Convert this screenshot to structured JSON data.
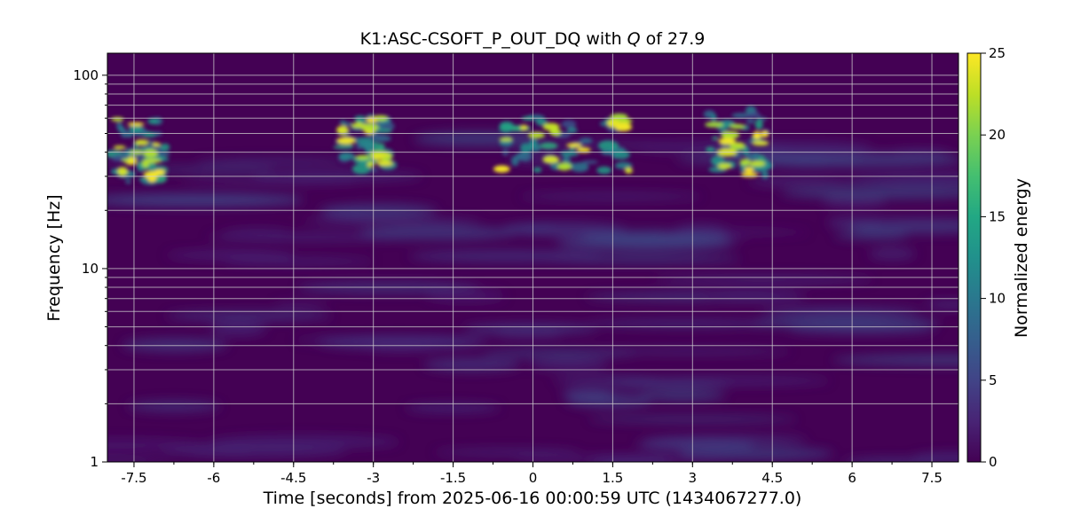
{
  "chart_data": {
    "type": "heatmap",
    "title_prefix": "K1:ASC-CSOFT_P_OUT_DQ with ",
    "title_q_symbol": "Q",
    "title_suffix": " of 27.9",
    "xlabel": "Time [seconds] from 2025-06-16 00:00:59 UTC (1434067277.0)",
    "ylabel": "Frequency [Hz]",
    "colorbar_label": "Normalized energy",
    "x_range": [
      -8,
      8
    ],
    "y_range": [
      1,
      130
    ],
    "y_scale": "log",
    "c_range": [
      0,
      25
    ],
    "colormap": "viridis",
    "grid": true,
    "x_ticks": [
      {
        "value": -7.5,
        "label": "-7.5"
      },
      {
        "value": -6,
        "label": "-6"
      },
      {
        "value": -4.5,
        "label": "-4.5"
      },
      {
        "value": -3,
        "label": "-3"
      },
      {
        "value": -1.5,
        "label": "-1.5"
      },
      {
        "value": 0,
        "label": "0"
      },
      {
        "value": 1.5,
        "label": "1.5"
      },
      {
        "value": 3,
        "label": "3"
      },
      {
        "value": 4.5,
        "label": "4.5"
      },
      {
        "value": 6,
        "label": "6"
      },
      {
        "value": 7.5,
        "label": "7.5"
      }
    ],
    "y_ticks": [
      {
        "value": 1,
        "label": "1"
      },
      {
        "value": 10,
        "label": "10"
      },
      {
        "value": 100,
        "label": "100"
      }
    ],
    "c_ticks": [
      {
        "value": 0,
        "label": "0"
      },
      {
        "value": 5,
        "label": "5"
      },
      {
        "value": 10,
        "label": "10"
      },
      {
        "value": 15,
        "label": "15"
      },
      {
        "value": 20,
        "label": "20"
      },
      {
        "value": 25,
        "label": "25"
      }
    ],
    "events": [
      {
        "t_start": -7.9,
        "t_end": -6.9,
        "f_low": 28,
        "f_high": 62,
        "peak_energy": 25
      },
      {
        "t_start": -3.6,
        "t_end": -2.7,
        "f_low": 32,
        "f_high": 60,
        "peak_energy": 25
      },
      {
        "t_start": -0.6,
        "t_end": 1.8,
        "f_low": 32,
        "f_high": 62,
        "peak_energy": 25
      },
      {
        "t_start": 3.3,
        "t_end": 4.4,
        "f_low": 30,
        "f_high": 66,
        "peak_energy": 25
      }
    ],
    "background_energy": 2
  }
}
